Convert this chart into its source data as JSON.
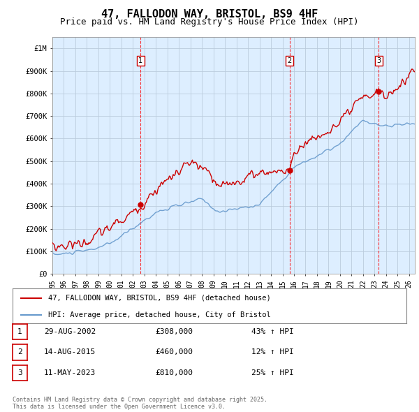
{
  "title": "47, FALLODON WAY, BRISTOL, BS9 4HF",
  "subtitle": "Price paid vs. HM Land Registry's House Price Index (HPI)",
  "title_fontsize": 11,
  "subtitle_fontsize": 9,
  "background_color": "#ffffff",
  "plot_bg_color": "#ddeeff",
  "grid_color": "#bbccdd",
  "sale_color": "#cc0000",
  "hpi_color": "#6699cc",
  "ylabel_ticks": [
    "£0",
    "£100K",
    "£200K",
    "£300K",
    "£400K",
    "£500K",
    "£600K",
    "£700K",
    "£800K",
    "£900K",
    "£1M"
  ],
  "ytick_values": [
    0,
    100000,
    200000,
    300000,
    400000,
    500000,
    600000,
    700000,
    800000,
    900000,
    1000000
  ],
  "ylim": [
    0,
    1050000
  ],
  "xlim_start": 1995.0,
  "xlim_end": 2026.5,
  "sale_dates": [
    2002.66,
    2015.62,
    2023.37
  ],
  "sale_prices": [
    308000,
    460000,
    810000
  ],
  "sale_labels": [
    "1",
    "2",
    "3"
  ],
  "legend_line1": "47, FALLODON WAY, BRISTOL, BS9 4HF (detached house)",
  "legend_line2": "HPI: Average price, detached house, City of Bristol",
  "table_entries": [
    {
      "label": "1",
      "date": "29-AUG-2002",
      "price": "£308,000",
      "change": "43% ↑ HPI"
    },
    {
      "label": "2",
      "date": "14-AUG-2015",
      "price": "£460,000",
      "change": "12% ↑ HPI"
    },
    {
      "label": "3",
      "date": "11-MAY-2023",
      "price": "£810,000",
      "change": "25% ↑ HPI"
    }
  ],
  "footnote": "Contains HM Land Registry data © Crown copyright and database right 2025.\nThis data is licensed under the Open Government Licence v3.0.",
  "xtick_years": [
    1995,
    1996,
    1997,
    1998,
    1999,
    2000,
    2001,
    2002,
    2003,
    2004,
    2005,
    2006,
    2007,
    2008,
    2009,
    2010,
    2011,
    2012,
    2013,
    2014,
    2015,
    2016,
    2017,
    2018,
    2019,
    2020,
    2021,
    2022,
    2023,
    2024,
    2025,
    2026
  ]
}
